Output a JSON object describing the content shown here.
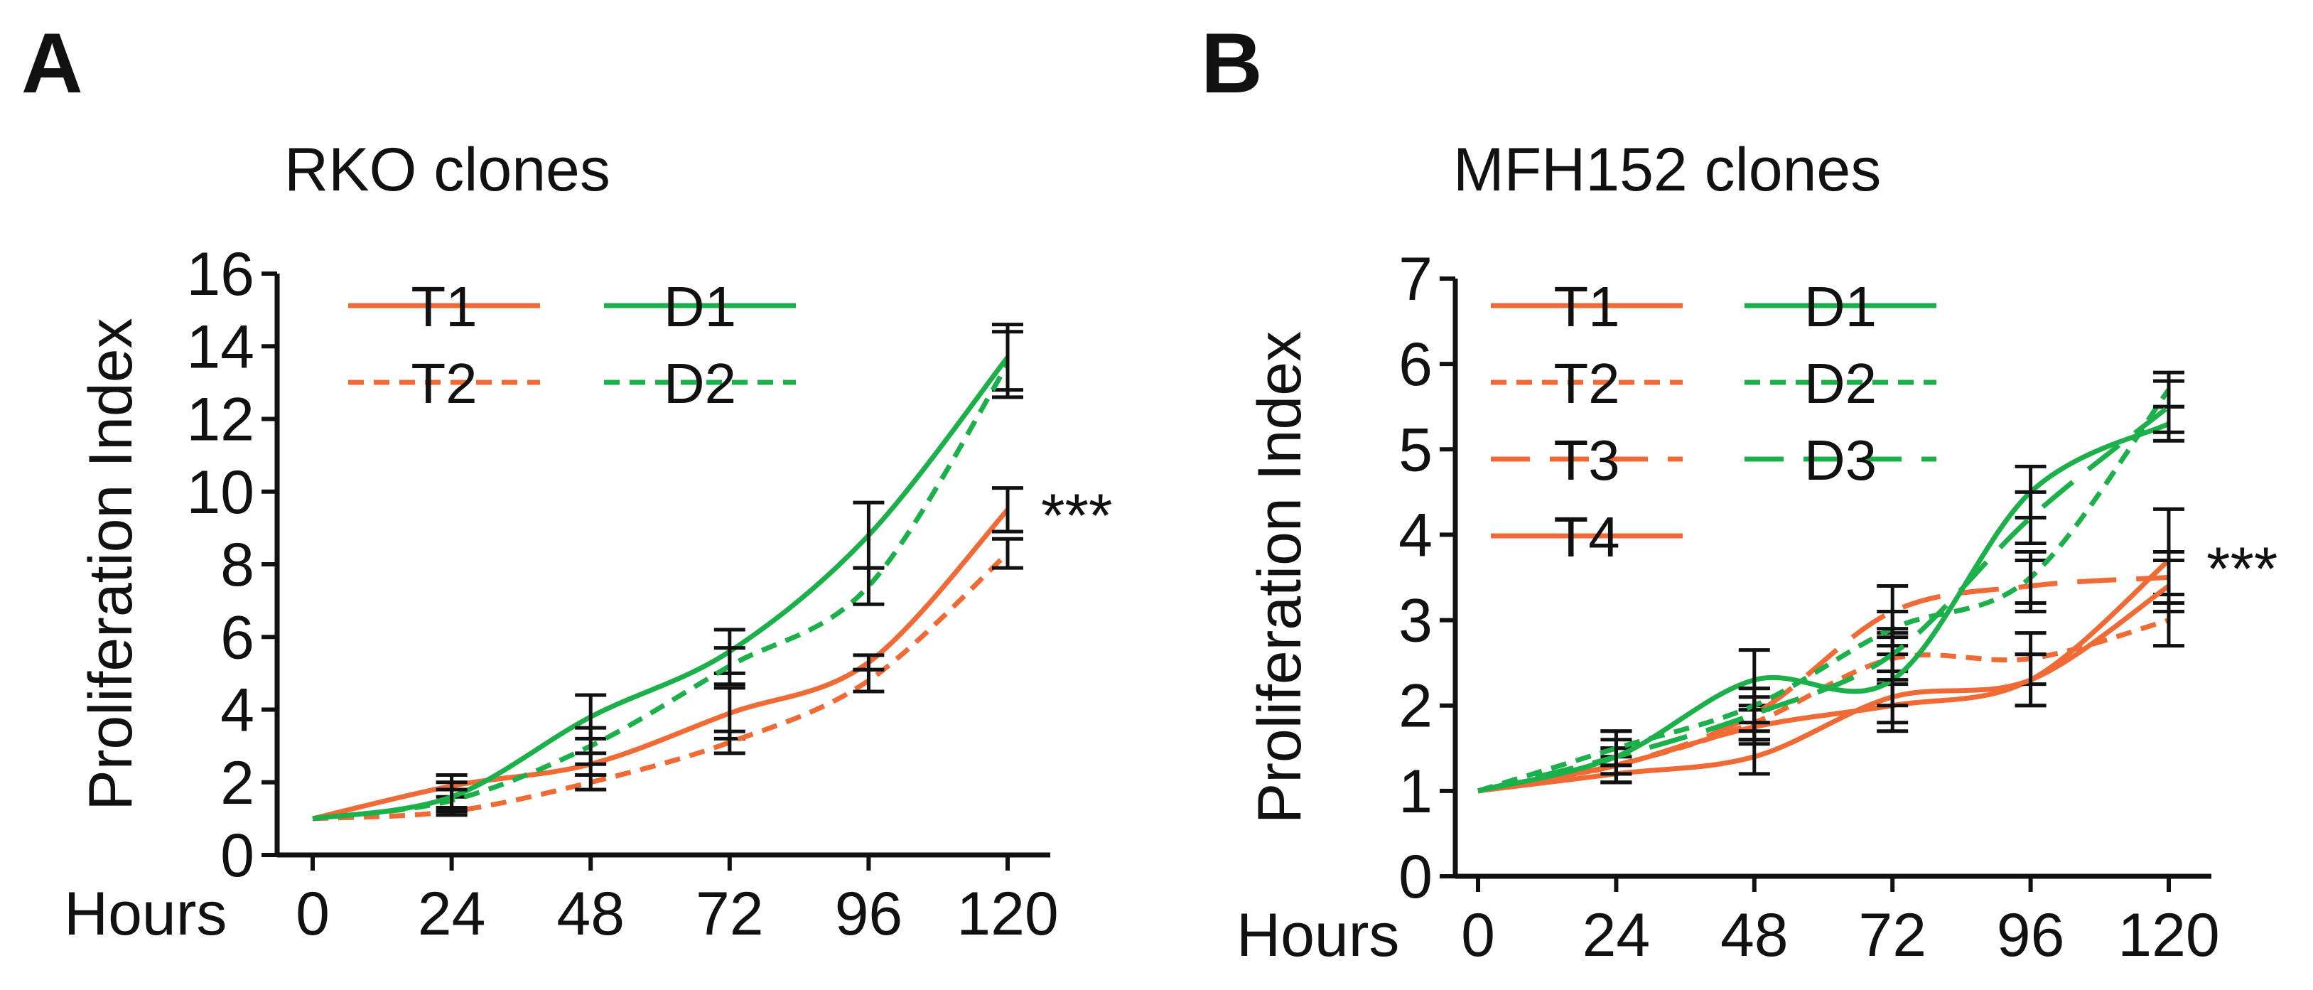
{
  "chart_data": [
    {
      "panel": "A",
      "type": "line",
      "title": "RKO clones",
      "xlabel": "Hours",
      "ylabel": "Proliferation Index",
      "x": [
        0,
        24,
        48,
        72,
        96,
        120
      ],
      "xticks": [
        "0",
        "24",
        "48",
        "72",
        "96",
        "120"
      ],
      "ylim": [
        0,
        16
      ],
      "yticks": [
        "0",
        "2",
        "4",
        "6",
        "8",
        "10",
        "12",
        "14",
        "16"
      ],
      "significance": "***",
      "legend_position": "top-left",
      "series": [
        {
          "name": "T1",
          "color": "#f06a35",
          "dash": "solid",
          "values": [
            1.0,
            1.9,
            2.5,
            3.9,
            5.3,
            9.5
          ],
          "errors": [
            0,
            0.3,
            0.3,
            0.7,
            0.2,
            0.6
          ]
        },
        {
          "name": "T2",
          "color": "#f06a35",
          "dash": "short",
          "values": [
            1.0,
            1.2,
            2.0,
            3.1,
            4.8,
            8.3
          ],
          "errors": [
            0,
            0.1,
            0.2,
            0.3,
            0.3,
            0.4
          ]
        },
        {
          "name": "D1",
          "color": "#1cb04a",
          "dash": "solid",
          "values": [
            1.0,
            1.6,
            3.8,
            5.6,
            8.8,
            13.7
          ],
          "errors": [
            0,
            0.4,
            0.6,
            0.6,
            0.9,
            0.9
          ]
        },
        {
          "name": "D2",
          "color": "#1cb04a",
          "dash": "short",
          "values": [
            1.0,
            1.5,
            3.0,
            5.2,
            7.4,
            13.5
          ],
          "errors": [
            0,
            0.3,
            0.5,
            0.5,
            0.5,
            0.9
          ]
        }
      ]
    },
    {
      "panel": "B",
      "type": "line",
      "title": "MFH152 clones",
      "xlabel": "Hours",
      "ylabel": "Proliferation Index",
      "x": [
        0,
        24,
        48,
        72,
        96,
        120
      ],
      "xticks": [
        "0",
        "24",
        "48",
        "72",
        "96",
        "120"
      ],
      "ylim": [
        0,
        7
      ],
      "yticks": [
        "0",
        "1",
        "2",
        "3",
        "4",
        "5",
        "6",
        "7"
      ],
      "significance": "***",
      "legend_position": "top-left",
      "series": [
        {
          "name": "T1",
          "color": "#f06a35",
          "dash": "solid",
          "values": [
            1.0,
            1.3,
            1.75,
            2.0,
            2.3,
            3.7
          ],
          "errors": [
            0,
            0.1,
            0.2,
            0.3,
            0.3,
            0.6
          ]
        },
        {
          "name": "T2",
          "color": "#f06a35",
          "dash": "short",
          "values": [
            1.0,
            1.3,
            1.8,
            2.55,
            2.55,
            3.0
          ],
          "errors": [
            0,
            0.2,
            0.2,
            0.3,
            0.3,
            0.3
          ]
        },
        {
          "name": "T3",
          "color": "#f06a35",
          "dash": "long",
          "values": [
            1.0,
            1.3,
            1.9,
            3.1,
            3.4,
            3.5
          ],
          "errors": [
            0,
            0.2,
            0.2,
            0.3,
            0.3,
            0.3
          ]
        },
        {
          "name": "T4",
          "color": "#f06a35",
          "dash": "solid",
          "values": [
            1.0,
            1.2,
            1.4,
            2.1,
            2.3,
            3.4
          ],
          "errors": [
            0,
            0.1,
            0.2,
            0.3,
            0.3,
            0.3
          ]
        },
        {
          "name": "D1",
          "color": "#1cb04a",
          "dash": "solid",
          "values": [
            1.0,
            1.4,
            2.3,
            2.3,
            4.5,
            5.3
          ],
          "errors": [
            0,
            0.3,
            0.35,
            0.3,
            0.3,
            0.2
          ]
        },
        {
          "name": "D2",
          "color": "#1cb04a",
          "dash": "short",
          "values": [
            1.0,
            1.5,
            2.0,
            2.9,
            3.5,
            5.7
          ],
          "errors": [
            0,
            0.2,
            0.2,
            0.2,
            0.3,
            0.2
          ]
        },
        {
          "name": "D3",
          "color": "#1cb04a",
          "dash": "long",
          "values": [
            1.0,
            1.4,
            1.9,
            2.6,
            4.2,
            5.5
          ],
          "errors": [
            0,
            0.2,
            0.3,
            0.3,
            0.3,
            0.3
          ]
        }
      ]
    }
  ]
}
